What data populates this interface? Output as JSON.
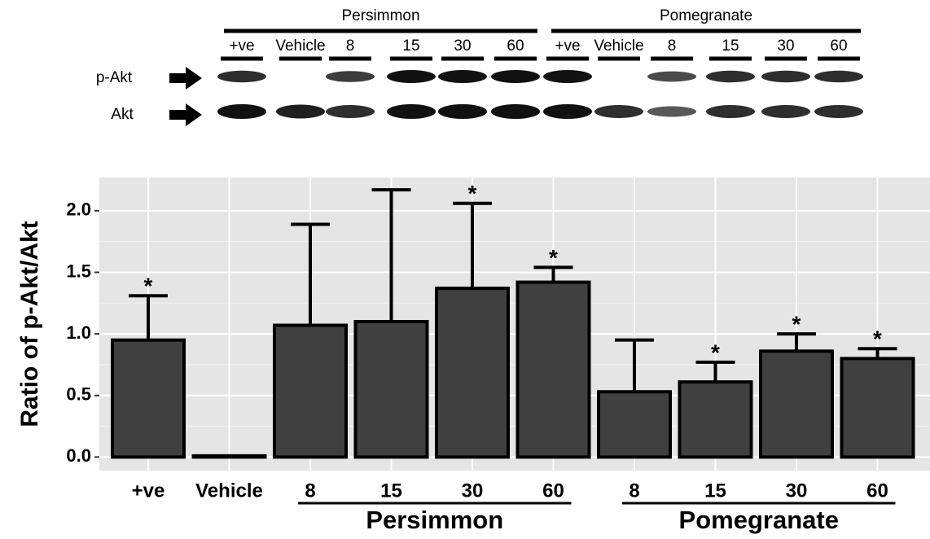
{
  "blot": {
    "groups": [
      "Persimmon",
      "Pomegranate"
    ],
    "lanes": [
      "+ve",
      "Vehicle",
      "8",
      "15",
      "30",
      "60",
      "+ve",
      "Vehicle",
      "8",
      "15",
      "30",
      "60"
    ],
    "rows": [
      "p-Akt",
      "Akt"
    ]
  },
  "chart_data": {
    "type": "bar",
    "y_label": "Ratio of p-Akt/Akt",
    "categories": [
      "+ve",
      "Vehicle",
      "8",
      "15",
      "30",
      "60",
      "8",
      "15",
      "30",
      "60"
    ],
    "groups": [
      {
        "name": "Persimmon",
        "from": 2,
        "to": 5
      },
      {
        "name": "Pomegranate",
        "from": 6,
        "to": 9
      }
    ],
    "values": [
      0.95,
      0.01,
      1.07,
      1.1,
      1.37,
      1.42,
      0.53,
      0.61,
      0.86,
      0.8
    ],
    "errors": [
      0.36,
      null,
      0.82,
      1.07,
      0.69,
      0.12,
      0.42,
      0.16,
      0.14,
      0.08
    ],
    "significance": [
      "*",
      null,
      null,
      null,
      "*",
      "*",
      null,
      "*",
      "*",
      "*"
    ],
    "color": "#404040",
    "ylim": [
      -0.11,
      2.27
    ],
    "yticks": [
      {
        "value": 0,
        "label": "0.0"
      },
      0.5,
      {
        "value": 1,
        "label": "1.0"
      },
      1.5,
      {
        "value": 2,
        "label": "2.0"
      }
    ],
    "grid": true
  }
}
